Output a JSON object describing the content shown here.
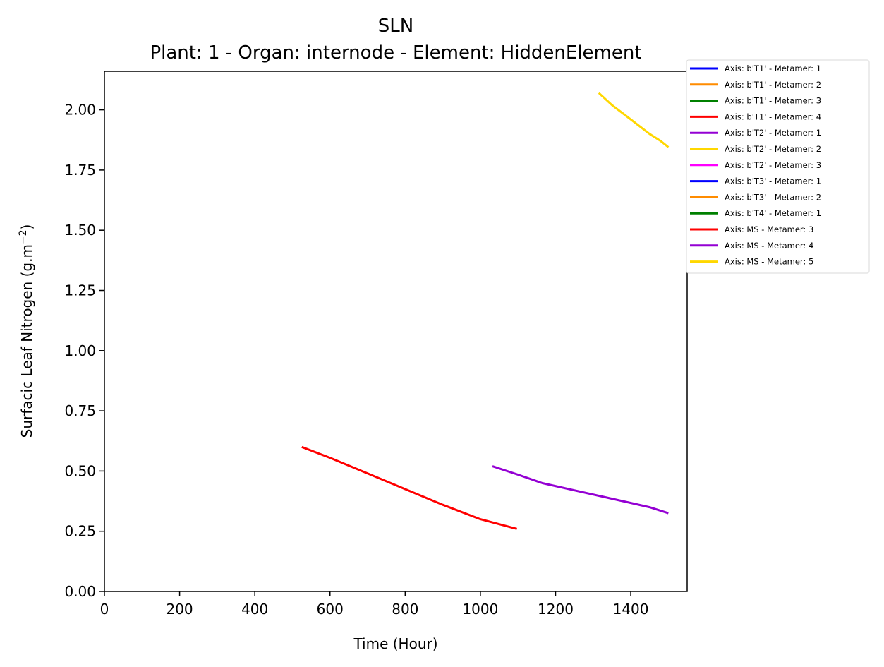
{
  "chart_data": {
    "type": "line",
    "title": "SLN",
    "subtitle": "Plant: 1 - Organ: internode - Element: HiddenElement",
    "xlabel": "Time (Hour)",
    "ylabel": "Surfacic Leaf Nitrogen (g.m",
    "ylabel_superscript": "−2",
    "ylabel_suffix": ")",
    "xlim": [
      0,
      1550
    ],
    "ylim": [
      0,
      2.16
    ],
    "xticks": [
      0,
      200,
      400,
      600,
      800,
      1000,
      1200,
      1400
    ],
    "xtick_labels": [
      "0",
      "200",
      "400",
      "600",
      "800",
      "1000",
      "1200",
      "1400"
    ],
    "yticks": [
      0,
      0.25,
      0.5,
      0.75,
      1.0,
      1.25,
      1.5,
      1.75,
      2.0
    ],
    "ytick_labels": [
      "0.00",
      "0.25",
      "0.50",
      "0.75",
      "1.00",
      "1.25",
      "1.50",
      "1.75",
      "2.00"
    ],
    "grid": false,
    "legend_position": "outside-top-right",
    "series": [
      {
        "name": "Axis: b'T1' - Metamer: 1",
        "color": "#0000ff",
        "x": [],
        "y": []
      },
      {
        "name": "Axis: b'T1' - Metamer: 2",
        "color": "#ff8c00",
        "x": [],
        "y": []
      },
      {
        "name": "Axis: b'T1' - Metamer: 3",
        "color": "#008000",
        "x": [],
        "y": []
      },
      {
        "name": "Axis: b'T1' - Metamer: 4",
        "color": "#ff0000",
        "x": [],
        "y": []
      },
      {
        "name": "Axis: b'T2' - Metamer: 1",
        "color": "#9400d3",
        "x": [],
        "y": []
      },
      {
        "name": "Axis: b'T2' - Metamer: 2",
        "color": "#ffd700",
        "x": [],
        "y": []
      },
      {
        "name": "Axis: b'T2' - Metamer: 3",
        "color": "#ff00ff",
        "x": [],
        "y": []
      },
      {
        "name": "Axis: b'T3' - Metamer: 1",
        "color": "#0000ff",
        "x": [],
        "y": []
      },
      {
        "name": "Axis: b'T3' - Metamer: 2",
        "color": "#ff8c00",
        "x": [],
        "y": []
      },
      {
        "name": "Axis: b'T4' - Metamer: 1",
        "color": "#008000",
        "x": [],
        "y": []
      },
      {
        "name": "Axis: MS - Metamer: 3",
        "color": "#ff0000",
        "x": [
          525,
          600,
          700,
          800,
          900,
          1000,
          1097
        ],
        "y": [
          0.6,
          0.555,
          0.49,
          0.425,
          0.36,
          0.3,
          0.26
        ]
      },
      {
        "name": "Axis: MS - Metamer: 4",
        "color": "#9400d3",
        "x": [
          1032,
          1100,
          1165,
          1250,
          1350,
          1450,
          1500
        ],
        "y": [
          0.52,
          0.485,
          0.45,
          0.42,
          0.385,
          0.35,
          0.325
        ]
      },
      {
        "name": "Axis: MS - Metamer: 5",
        "color": "#ffd700",
        "x": [
          1315,
          1350,
          1400,
          1450,
          1480,
          1500
        ],
        "y": [
          2.07,
          2.02,
          1.96,
          1.9,
          1.87,
          1.845
        ]
      }
    ]
  }
}
